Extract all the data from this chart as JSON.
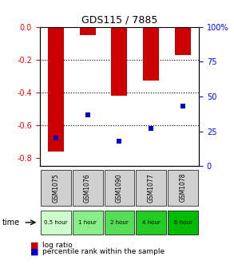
{
  "title": "GDS115 / 7885",
  "samples": [
    "GSM1075",
    "GSM1076",
    "GSM1090",
    "GSM1077",
    "GSM1078"
  ],
  "time_labels": [
    "0.5 hour",
    "1 hour",
    "2 hour",
    "4 hour",
    "6 hour"
  ],
  "log_ratios": [
    -0.76,
    -0.05,
    -0.42,
    -0.33,
    -0.17
  ],
  "percentile_ranks": [
    20,
    37,
    18,
    27,
    43
  ],
  "bar_bottom": 0,
  "ylim_left": [
    -0.85,
    0.0
  ],
  "ylim_right": [
    0,
    100
  ],
  "yticks_left": [
    0,
    -0.2,
    -0.4,
    -0.6,
    -0.8
  ],
  "yticks_right": [
    0,
    25,
    50,
    75,
    100
  ],
  "bar_color": "#cc0000",
  "percentile_color": "#0000cc",
  "grid_color": "#000000",
  "label_bg_gray": "#d0d0d0",
  "time_bg_colors": [
    "#ccffcc",
    "#88ee88",
    "#55dd55",
    "#22cc22",
    "#00bb00"
  ],
  "legend_log_label": "log ratio",
  "legend_pct_label": "percentile rank within the sample",
  "time_arrow_label": "time",
  "fig_width": 2.93,
  "fig_height": 3.36,
  "dpi": 100
}
